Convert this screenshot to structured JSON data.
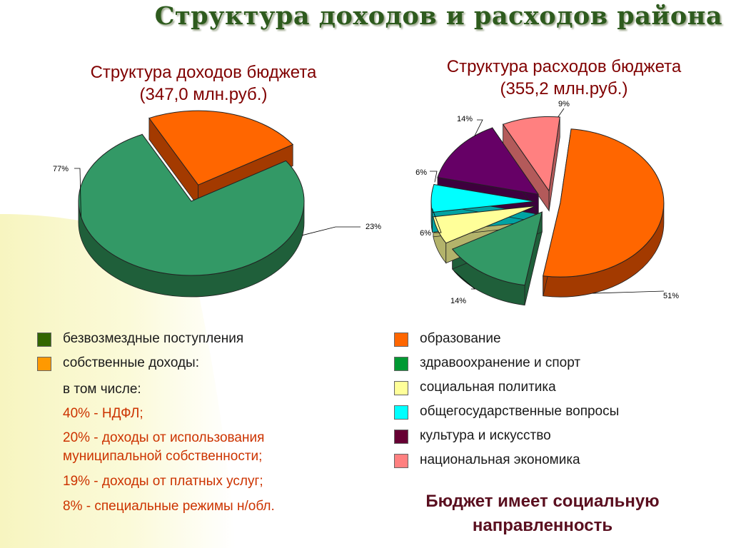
{
  "title": "Структура доходов и расходов района",
  "left_chart_title_line1": "Структура доходов бюджета",
  "left_chart_title_line2": "(347,0 млн.руб.)",
  "right_chart_title_line1": "Структура расходов бюджета",
  "right_chart_title_line2": "(355,2 млн.руб.)",
  "chart_data": [
    {
      "type": "pie",
      "title": "Структура доходов бюджета (347,0 млн.руб.)",
      "slices": [
        {
          "label": "безвозмездные поступления",
          "value": 77,
          "display": "77%",
          "color": "#339966",
          "side": "#1f5f3a"
        },
        {
          "label": "собственные доходы:",
          "value": 23,
          "display": "23%",
          "color": "#ff6600",
          "side": "#a33a00"
        }
      ]
    },
    {
      "type": "pie",
      "title": "Структура расходов бюджета (355,2 млн.руб.)",
      "slices": [
        {
          "label": "образование",
          "value": 51,
          "display": "51%",
          "color": "#ff6600",
          "side": "#a33a00"
        },
        {
          "label": "здравоохранение и спорт",
          "value": 14,
          "display": "14%",
          "color": "#339966",
          "side": "#1f5f3a"
        },
        {
          "label": "социальная политика",
          "value": 6,
          "display": "6%",
          "color": "#ffff99",
          "side": "#b3b36b"
        },
        {
          "label": "общегосударственные вопросы",
          "value": 6,
          "display": "6%",
          "color": "#00ffff",
          "side": "#00a3a3"
        },
        {
          "label": "культура и искусство",
          "value": 14,
          "display": "14%",
          "color": "#660066",
          "side": "#3d003d"
        },
        {
          "label": "национальная экономика",
          "value": 9,
          "display": "9%",
          "color": "#ff8080",
          "side": "#b35a5a"
        }
      ]
    }
  ],
  "left_legend": [
    {
      "text": "безвозмездные поступления",
      "color": "#336600"
    },
    {
      "text": "собственные доходы:",
      "color": "#ff9900"
    }
  ],
  "income_details": {
    "intro": "в том числе:",
    "items": [
      "40% - НДФЛ;",
      "20% - доходы от использования муниципальной собственности;",
      "19% - доходы от платных услуг;",
      "8% - специальные режимы н/обл."
    ],
    "item2_line1": "20% - доходы от использования",
    "item2_line2": "муниципальной собственности;",
    "color": "#cc3300"
  },
  "right_legend": [
    {
      "text": "образование",
      "color": "#ff6600"
    },
    {
      "text": "здравоохранение и спорт",
      "color": "#009933"
    },
    {
      "text": "социальная политика",
      "color": "#ffff99"
    },
    {
      "text": "общегосударственные вопросы",
      "color": "#00ffff"
    },
    {
      "text": "культура и искусство",
      "color": "#660033"
    },
    {
      "text": "национальная экономика",
      "color": "#ff8080"
    }
  ],
  "conclusion_line1": "Бюджет имеет социальную",
  "conclusion_line2": "направленность"
}
